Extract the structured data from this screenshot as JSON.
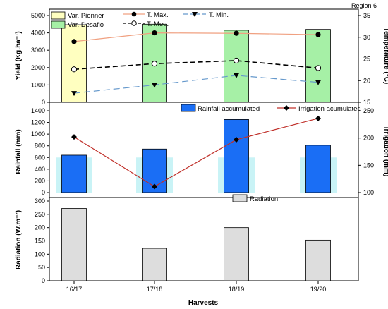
{
  "chart_data": [
    {
      "type": "bar",
      "region_label": "Region 6",
      "categories": [
        "16/17",
        "17/18",
        "18/19",
        "19/20"
      ],
      "ylabel": "Yield (Kg.ha⁻¹)",
      "ylabel_right": "Temperature (°C)",
      "ylim": [
        0,
        5000
      ],
      "ylim_right": [
        15,
        35
      ],
      "yticks": [
        "0",
        "1000",
        "2000",
        "3000",
        "4000",
        "5000"
      ],
      "yticks_right": [
        "15",
        "20",
        "25",
        "30",
        "35"
      ],
      "bar_series": [
        {
          "name": "Var. Pionner",
          "color": "#ffffc0",
          "values": [
            4470,
            null,
            null,
            null
          ]
        },
        {
          "name": "Var. Desafio",
          "color": "#a6f0a6",
          "values": [
            null,
            4500,
            4150,
            4200
          ]
        }
      ],
      "line_series": [
        {
          "name": "T. Max.",
          "color": "#f0a080",
          "marker": "filled-circle",
          "values": [
            29.0,
            31.0,
            30.9,
            30.6
          ]
        },
        {
          "name": "T. Med.",
          "color": "#000000",
          "marker": "open-circle",
          "values": [
            22.6,
            23.9,
            24.6,
            22.9
          ]
        },
        {
          "name": "T. Min.",
          "color": "#6699cc",
          "marker": "filled-triangle-down",
          "values": [
            17.1,
            19.0,
            21.2,
            19.6
          ]
        }
      ]
    },
    {
      "type": "bar",
      "categories": [
        "16/17",
        "17/18",
        "18/19",
        "19/20"
      ],
      "ylabel": "Rainfall (mm)",
      "ylabel_right": "Irrigation (mm)",
      "ylim": [
        0,
        1400
      ],
      "ylim_right": [
        100,
        250
      ],
      "yticks": [
        "0",
        "200",
        "400",
        "600",
        "800",
        "1000",
        "1200",
        "1400"
      ],
      "yticks_right": [
        "100",
        "150",
        "200",
        "250"
      ],
      "series": [
        {
          "name": "Rainfall accumulated",
          "color": "#1a6ef5",
          "values": [
            640,
            745,
            1250,
            810
          ]
        },
        {
          "name": "Irrigation acumulated",
          "color": "#c0302a",
          "values": [
            202,
            111,
            197,
            236
          ]
        }
      ]
    },
    {
      "type": "bar",
      "categories": [
        "16/17",
        "17/18",
        "18/19",
        "19/20"
      ],
      "xlabel": "Harvests",
      "ylabel": "Radiation (W.m⁻²)",
      "ylim": [
        0,
        300
      ],
      "yticks": [
        "0",
        "50",
        "100",
        "150",
        "200",
        "250",
        "300"
      ],
      "series": [
        {
          "name": "Radiation",
          "color": "#dddddd",
          "values": [
            272,
            122,
            200,
            153
          ]
        }
      ]
    }
  ]
}
